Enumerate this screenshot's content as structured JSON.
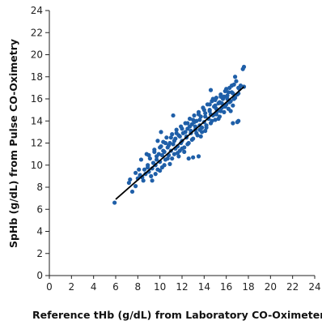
{
  "chart_data": {
    "type": "scatter",
    "title": "",
    "xlabel": "Reference tHb (g/dL) from Laboratory CO-Oximeter",
    "ylabel": "SpHb (g/dL) from Pulse CO-Oximetry",
    "xlim": [
      0,
      24
    ],
    "ylim": [
      0,
      24
    ],
    "xticks": [
      0,
      2,
      4,
      6,
      8,
      10,
      12,
      14,
      16,
      18,
      20,
      22,
      24
    ],
    "yticks": [
      0,
      2,
      4,
      6,
      8,
      10,
      12,
      14,
      16,
      18,
      20,
      22,
      24
    ],
    "grid": false,
    "legend": "none",
    "point_color": "#1f5fa8",
    "line_color": "#000000",
    "regression_line": {
      "x": [
        6.0,
        17.6
      ],
      "y": [
        6.9,
        17.1
      ]
    },
    "series": [
      {
        "points": [
          [
            5.9,
            6.6
          ],
          [
            7.2,
            8.4
          ],
          [
            7.3,
            8.7
          ],
          [
            7.5,
            7.6
          ],
          [
            7.8,
            9.3
          ],
          [
            8.0,
            8.8
          ],
          [
            8.2,
            9.1
          ],
          [
            8.4,
            8.9
          ],
          [
            8.6,
            9.6
          ],
          [
            8.7,
            9.2
          ],
          [
            8.9,
            10.0
          ],
          [
            9.0,
            9.4
          ],
          [
            9.1,
            10.6
          ],
          [
            9.3,
            9.7
          ],
          [
            9.4,
            10.2
          ],
          [
            9.5,
            11.4
          ],
          [
            9.6,
            10.0
          ],
          [
            9.7,
            10.8
          ],
          [
            9.8,
            9.6
          ],
          [
            9.9,
            11.0
          ],
          [
            10.0,
            10.3
          ],
          [
            10.1,
            11.7
          ],
          [
            10.2,
            10.9
          ],
          [
            10.3,
            12.1
          ],
          [
            10.4,
            11.2
          ],
          [
            10.5,
            10.5
          ],
          [
            10.6,
            12.5
          ],
          [
            10.7,
            11.6
          ],
          [
            10.8,
            10.9
          ],
          [
            10.9,
            12.0
          ],
          [
            11.0,
            11.3
          ],
          [
            11.1,
            12.8
          ],
          [
            11.2,
            11.9
          ],
          [
            11.3,
            11.0
          ],
          [
            11.4,
            12.4
          ],
          [
            11.5,
            13.2
          ],
          [
            11.6,
            11.7
          ],
          [
            11.7,
            12.7
          ],
          [
            11.8,
            11.3
          ],
          [
            11.9,
            13.5
          ],
          [
            12.0,
            12.2
          ],
          [
            12.1,
            12.9
          ],
          [
            12.2,
            11.6
          ],
          [
            12.3,
            13.8
          ],
          [
            12.4,
            12.5
          ],
          [
            12.5,
            13.3
          ],
          [
            12.6,
            12.0
          ],
          [
            12.7,
            14.2
          ],
          [
            12.8,
            12.9
          ],
          [
            12.9,
            13.7
          ],
          [
            13.0,
            12.4
          ],
          [
            13.1,
            14.5
          ],
          [
            13.2,
            13.2
          ],
          [
            13.3,
            14.0
          ],
          [
            13.4,
            12.7
          ],
          [
            13.5,
            14.8
          ],
          [
            13.6,
            13.6
          ],
          [
            13.7,
            14.4
          ],
          [
            13.8,
            13.0
          ],
          [
            13.9,
            15.2
          ],
          [
            14.0,
            13.9
          ],
          [
            14.1,
            14.7
          ],
          [
            14.2,
            13.4
          ],
          [
            14.3,
            15.5
          ],
          [
            14.4,
            14.2
          ],
          [
            14.5,
            15.0
          ],
          [
            14.6,
            13.8
          ],
          [
            14.7,
            15.8
          ],
          [
            14.8,
            14.5
          ],
          [
            14.9,
            15.3
          ],
          [
            15.0,
            14.1
          ],
          [
            15.1,
            16.1
          ],
          [
            15.2,
            14.9
          ],
          [
            15.3,
            15.6
          ],
          [
            15.4,
            14.4
          ],
          [
            15.5,
            16.4
          ],
          [
            15.6,
            15.2
          ],
          [
            15.7,
            16.0
          ],
          [
            15.8,
            14.8
          ],
          [
            15.9,
            16.7
          ],
          [
            16.0,
            15.5
          ],
          [
            16.1,
            16.3
          ],
          [
            16.2,
            15.1
          ],
          [
            16.3,
            17.0
          ],
          [
            16.4,
            15.8
          ],
          [
            16.5,
            16.6
          ],
          [
            16.6,
            15.4
          ],
          [
            16.7,
            17.3
          ],
          [
            16.8,
            16.1
          ],
          [
            16.9,
            17.6
          ],
          [
            17.0,
            16.4
          ],
          [
            17.1,
            14.0
          ],
          [
            17.2,
            16.9
          ],
          [
            17.3,
            17.2
          ],
          [
            17.5,
            18.7
          ],
          [
            17.6,
            18.9
          ],
          [
            17.6,
            17.1
          ],
          [
            17.0,
            13.9
          ],
          [
            16.8,
            18.0
          ],
          [
            16.6,
            13.8
          ],
          [
            14.8,
            16.0
          ],
          [
            14.6,
            16.8
          ],
          [
            13.5,
            10.8
          ],
          [
            13.0,
            10.7
          ],
          [
            12.6,
            10.6
          ],
          [
            11.2,
            14.5
          ],
          [
            10.1,
            13.0
          ],
          [
            10.9,
            10.1
          ],
          [
            9.8,
            12.2
          ],
          [
            8.8,
            11.0
          ],
          [
            8.3,
            10.5
          ],
          [
            7.8,
            8.1
          ],
          [
            8.5,
            8.6
          ],
          [
            9.2,
            9.0
          ],
          [
            9.6,
            9.2
          ],
          [
            10.0,
            9.5
          ],
          [
            10.4,
            10.0
          ],
          [
            11.1,
            10.6
          ],
          [
            11.6,
            11.1
          ],
          [
            12.0,
            11.5
          ],
          [
            12.5,
            11.9
          ],
          [
            12.9,
            12.3
          ],
          [
            13.3,
            12.9
          ],
          [
            13.8,
            13.4
          ],
          [
            14.2,
            13.6
          ],
          [
            14.7,
            14.0
          ],
          [
            15.1,
            14.6
          ],
          [
            15.5,
            14.9
          ],
          [
            15.9,
            15.3
          ],
          [
            16.3,
            15.7
          ],
          [
            16.7,
            16.0
          ],
          [
            17.1,
            16.5
          ],
          [
            9.0,
            10.9
          ],
          [
            9.5,
            11.2
          ],
          [
            10.0,
            11.6
          ],
          [
            10.5,
            12.0
          ],
          [
            11.0,
            12.5
          ],
          [
            11.5,
            12.9
          ],
          [
            12.0,
            13.3
          ],
          [
            12.5,
            13.8
          ],
          [
            13.0,
            14.1
          ],
          [
            13.5,
            14.6
          ],
          [
            14.0,
            15.0
          ],
          [
            14.5,
            15.5
          ],
          [
            15.0,
            15.9
          ],
          [
            15.5,
            16.2
          ],
          [
            16.0,
            16.9
          ],
          [
            16.5,
            17.2
          ],
          [
            10.7,
            10.6
          ],
          [
            11.4,
            11.5
          ],
          [
            11.9,
            12.0
          ],
          [
            12.4,
            12.6
          ],
          [
            12.8,
            13.1
          ],
          [
            13.2,
            13.5
          ],
          [
            13.6,
            14.1
          ],
          [
            14.1,
            14.4
          ],
          [
            14.5,
            14.9
          ],
          [
            15.0,
            15.4
          ],
          [
            15.4,
            15.7
          ],
          [
            15.8,
            16.2
          ],
          [
            16.2,
            16.6
          ],
          [
            8.1,
            9.6
          ],
          [
            8.9,
            9.8
          ],
          [
            9.7,
            10.5
          ],
          [
            10.3,
            11.3
          ],
          [
            10.8,
            11.8
          ],
          [
            11.3,
            12.2
          ],
          [
            11.8,
            12.6
          ],
          [
            12.3,
            13.0
          ],
          [
            12.7,
            13.5
          ],
          [
            13.1,
            13.9
          ],
          [
            13.6,
            13.2
          ],
          [
            14.1,
            13.1
          ],
          [
            14.6,
            14.6
          ],
          [
            15.1,
            15.1
          ],
          [
            15.6,
            15.6
          ],
          [
            16.1,
            16.0
          ],
          [
            16.6,
            16.5
          ],
          [
            17.1,
            17.0
          ],
          [
            9.3,
            8.6
          ],
          [
            10.2,
            9.8
          ],
          [
            11.7,
            10.8
          ],
          [
            12.2,
            11.2
          ],
          [
            13.7,
            12.6
          ],
          [
            15.3,
            14.2
          ],
          [
            16.4,
            14.9
          ]
        ]
      }
    ]
  }
}
